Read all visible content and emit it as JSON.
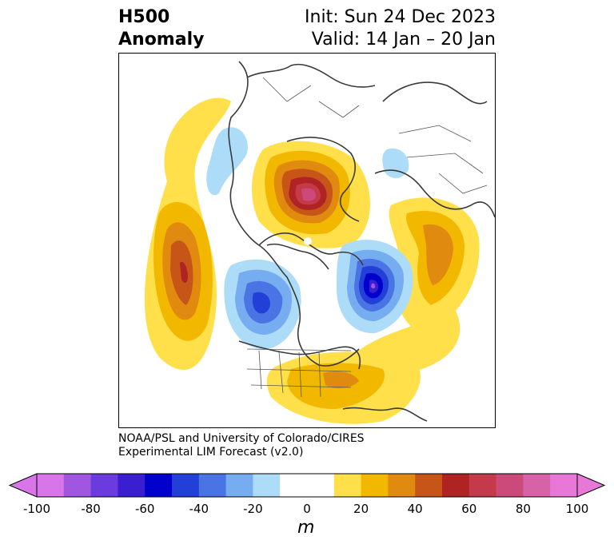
{
  "title": {
    "left_line1": "H500",
    "left_line2": "Anomaly",
    "right_line1": "Init: Sun 24 Dec 2023",
    "right_line2": "Valid: 14 Jan – 20 Jan"
  },
  "credit": {
    "line1": "NOAA/PSL and University of Colorado/CIRES",
    "line2": "Experimental LIM Forecast (v2.0)"
  },
  "colorbar": {
    "units": "m",
    "tick_labels": [
      "-100",
      "-80",
      "-60",
      "-40",
      "-20",
      "0",
      "20",
      "40",
      "60",
      "80",
      "100"
    ],
    "colors": [
      "#d875e8",
      "#a056e0",
      "#6a3ce0",
      "#3a1fd0",
      "#0000cc",
      "#2240d8",
      "#4a74e4",
      "#76acf0",
      "#acdcf8",
      "#ffffff",
      "#ffffff",
      "#ffe04a",
      "#f2b800",
      "#e08a10",
      "#c85518",
      "#b02323",
      "#c43a4a",
      "#cc4a7a",
      "#d862a8",
      "#e878d8"
    ]
  },
  "map": {
    "projection": "polar stereographic, Northern Hemisphere",
    "features": [
      "coastlines",
      "country borders",
      "US state borders"
    ],
    "anomaly_centers": [
      {
        "region": "North Pacific / Aleutians",
        "sign": "positive",
        "peak_m": 60
      },
      {
        "region": "Greenland / Baffin Bay",
        "sign": "positive",
        "peak_m": 80
      },
      {
        "region": "Western Canada / Alaska",
        "sign": "negative",
        "peak_m": -60
      },
      {
        "region": "North Atlantic / UK",
        "sign": "negative",
        "peak_m": -80
      },
      {
        "region": "Eastern Europe / Western Russia",
        "sign": "positive",
        "peak_m": 40
      },
      {
        "region": "Eastern United States",
        "sign": "positive",
        "peak_m": 40
      }
    ]
  }
}
